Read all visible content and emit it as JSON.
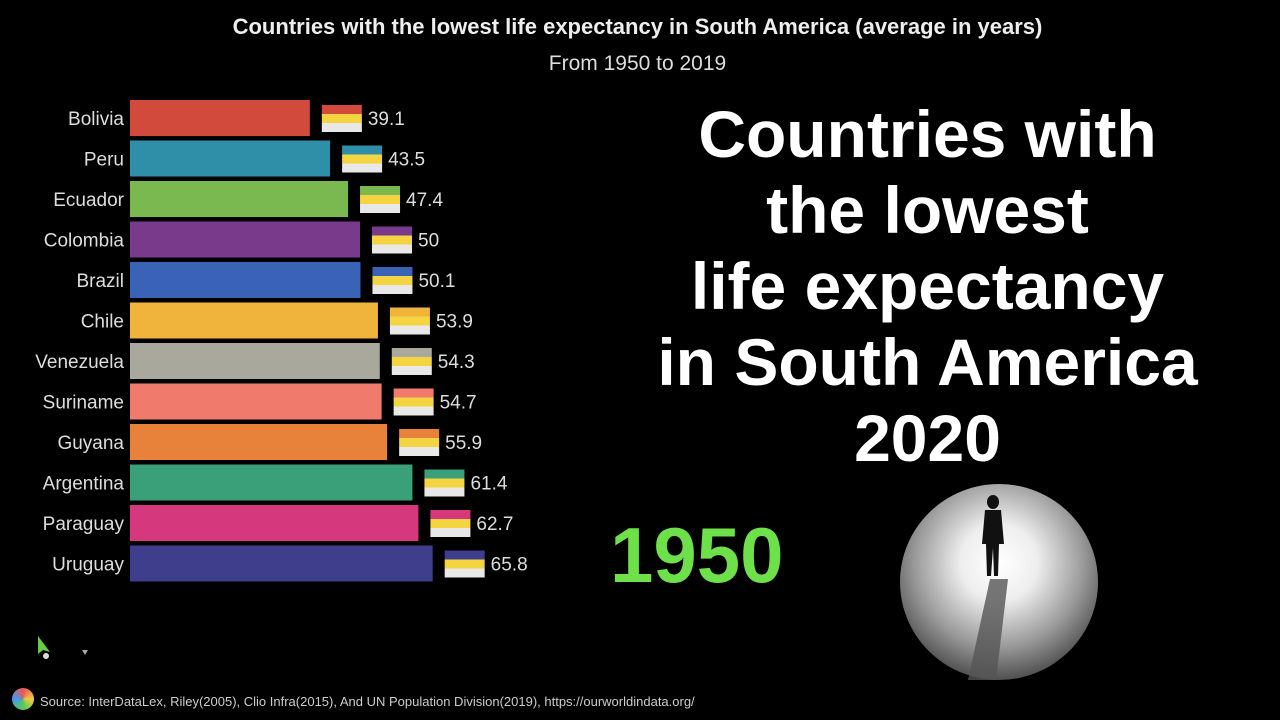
{
  "overlay_title": [
    "Countries with",
    "the lowest",
    "life expectancy",
    "in South America",
    "2020"
  ],
  "year_label": "1950",
  "source": "Source: InterDataLex, Riley(2005), Clio Infra(2015), And UN Population Division(2019), https://ourworldindata.org/",
  "chart_data": {
    "type": "bar",
    "orientation": "horizontal",
    "title": "Countries with the lowest life expectancy in South America (average in years)",
    "subtitle": "From 1950 to 2019",
    "categories": [
      "Bolivia",
      "Peru",
      "Ecuador",
      "Colombia",
      "Brazil",
      "Chile",
      "Venezuela",
      "Suriname",
      "Guyana",
      "Argentina",
      "Paraguay",
      "Uruguay"
    ],
    "values": [
      39.1,
      43.5,
      47.4,
      50,
      50.1,
      53.9,
      54.3,
      54.7,
      55.9,
      61.4,
      62.7,
      65.8
    ],
    "value_labels": [
      "39.1",
      "43.5",
      "47.4",
      "50",
      "50.1",
      "53.9",
      "54.3",
      "54.7",
      "55.9",
      "61.4",
      "62.7",
      "65.8"
    ],
    "colors": [
      "#d24a3c",
      "#2f8fa8",
      "#7ab850",
      "#7a3a8c",
      "#3a63b8",
      "#f0b43c",
      "#a8a89c",
      "#f07a6c",
      "#e8823a",
      "#3aa07a",
      "#d6387e",
      "#3e3e8c"
    ],
    "xlim": [
      0,
      70
    ],
    "grid": false
  }
}
